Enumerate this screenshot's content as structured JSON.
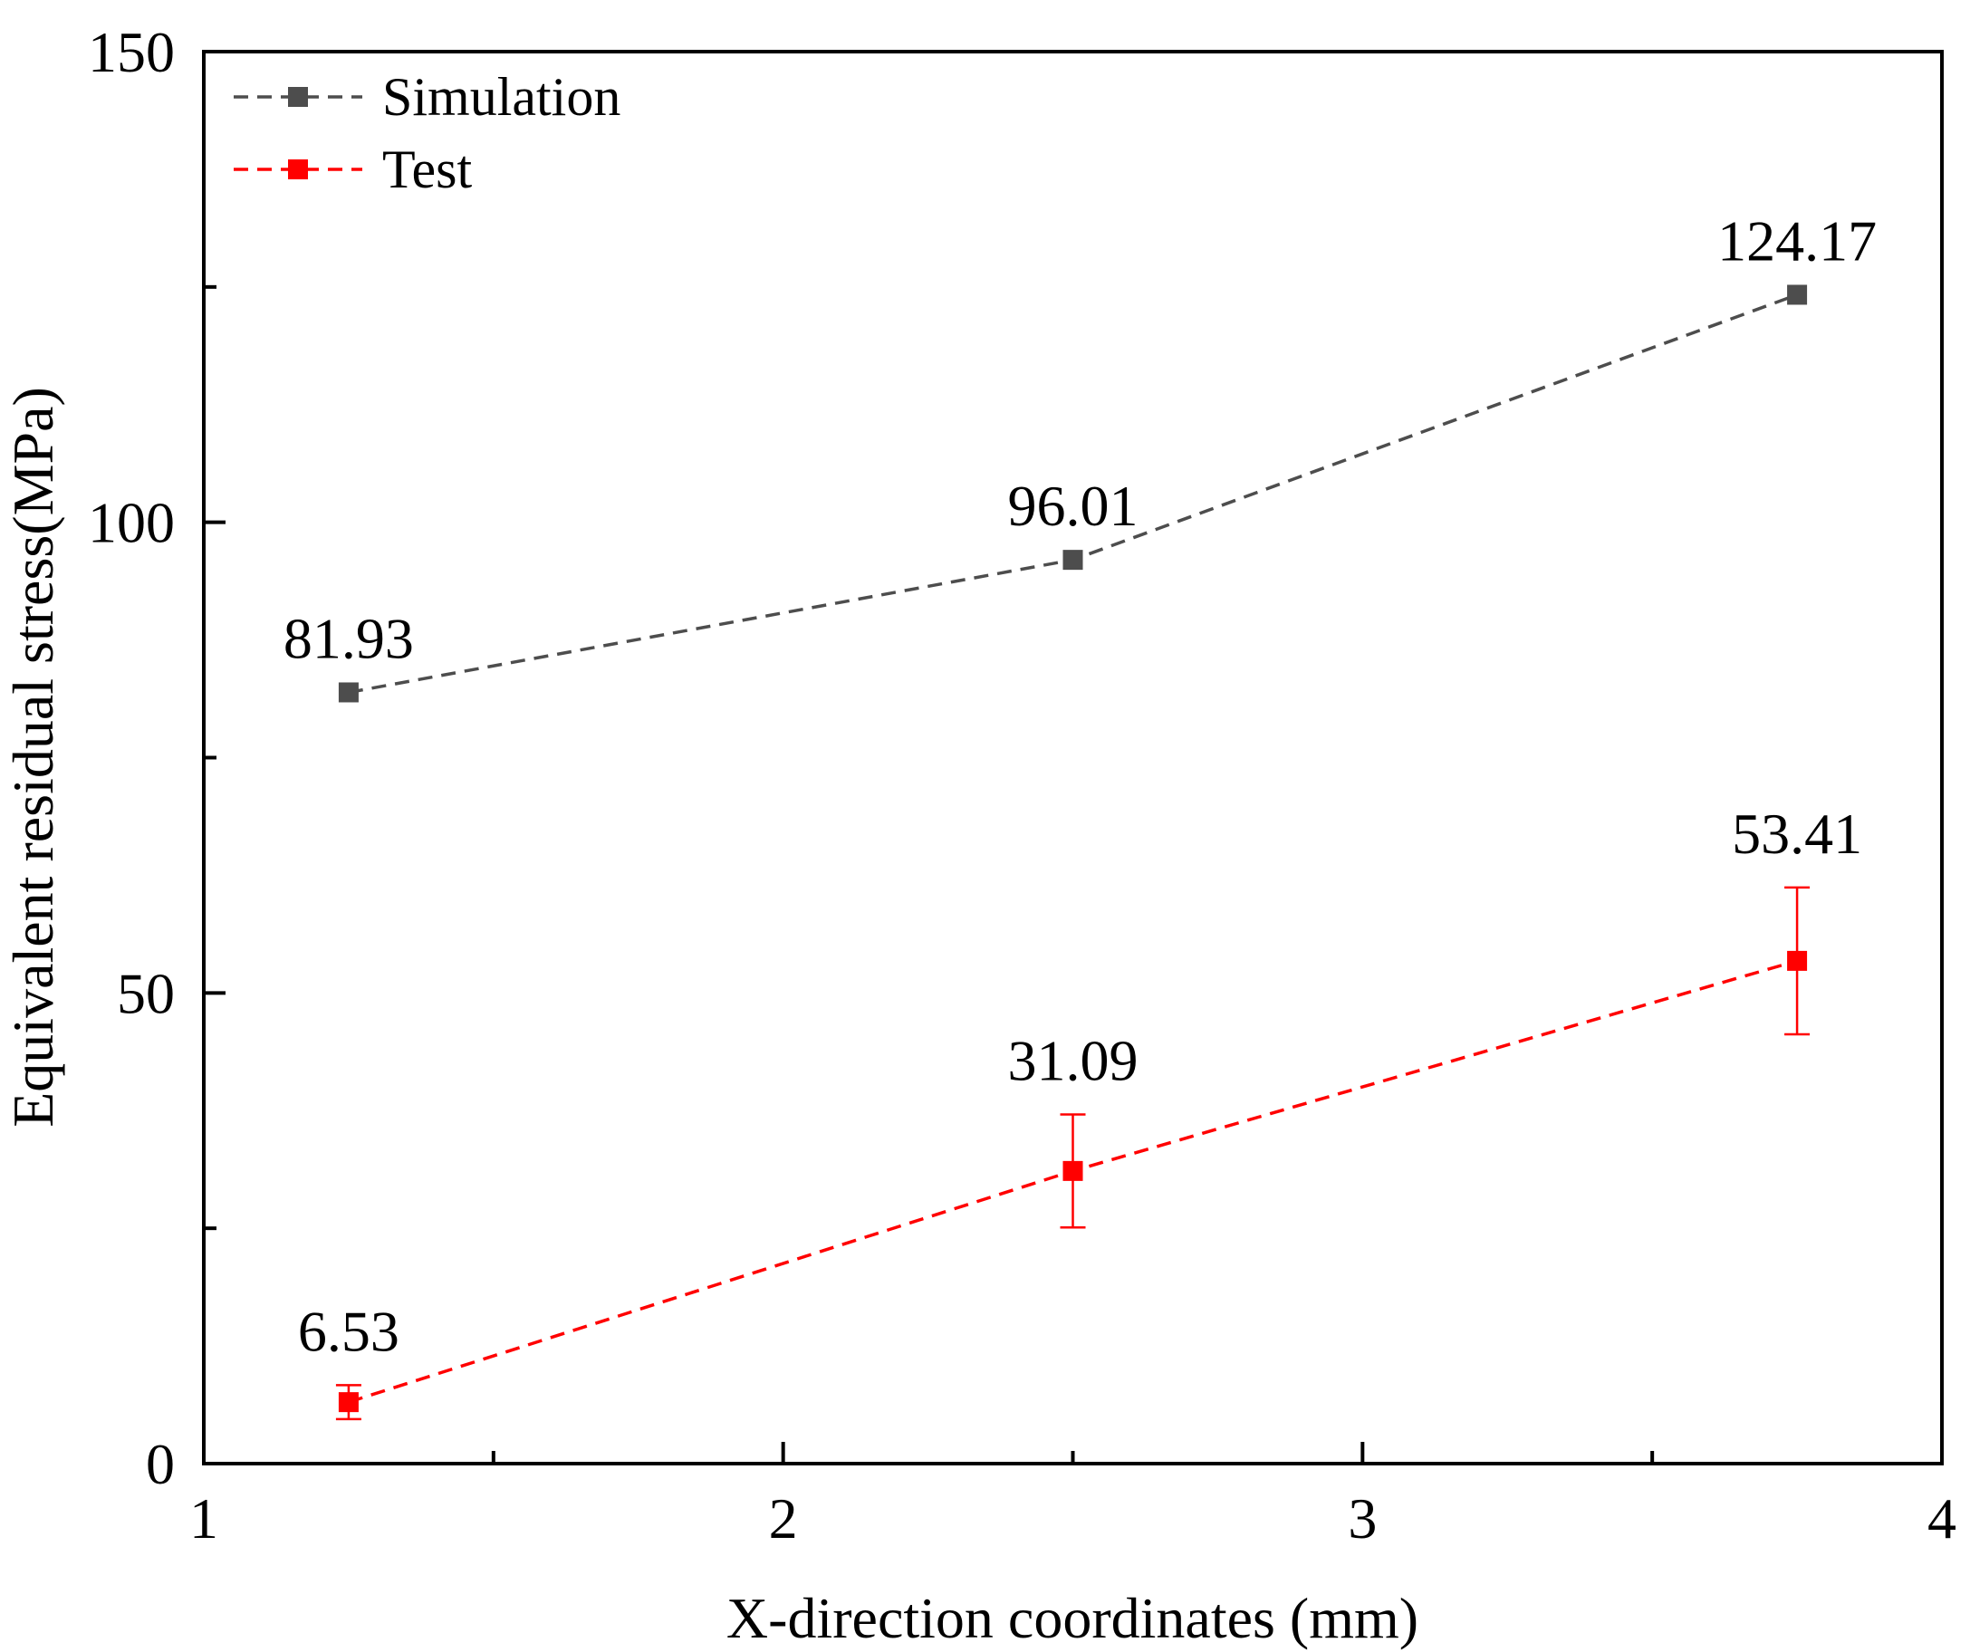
{
  "chart_data": {
    "type": "line",
    "title": "",
    "xlabel": "X-direction coordinates (mm)",
    "ylabel": "Equivalent residual stress(MPa)",
    "xlim": [
      1,
      4
    ],
    "ylim": [
      0,
      150
    ],
    "x_major_ticks": [
      1,
      2,
      3,
      4
    ],
    "x_minor_ticks": [
      1.5,
      2.5,
      3.5
    ],
    "y_major_ticks": [
      0,
      50,
      100,
      150
    ],
    "y_minor_ticks": [
      25,
      75,
      125
    ],
    "grid": false,
    "legend_position": "top-left",
    "series": [
      {
        "name": "Simulation",
        "color": "#4d4d4d",
        "x": [
          1.25,
          2.5,
          3.75
        ],
        "y": [
          81.93,
          96.01,
          124.17
        ],
        "data_labels": [
          "81.93",
          "96.01",
          "124.17"
        ]
      },
      {
        "name": "Test",
        "color": "#ff0000",
        "x": [
          1.25,
          2.5,
          3.75
        ],
        "y": [
          6.53,
          31.09,
          53.41
        ],
        "error": [
          1.8,
          6.0,
          7.8
        ],
        "data_labels": [
          "6.53",
          "31.09",
          "53.41"
        ]
      }
    ]
  }
}
